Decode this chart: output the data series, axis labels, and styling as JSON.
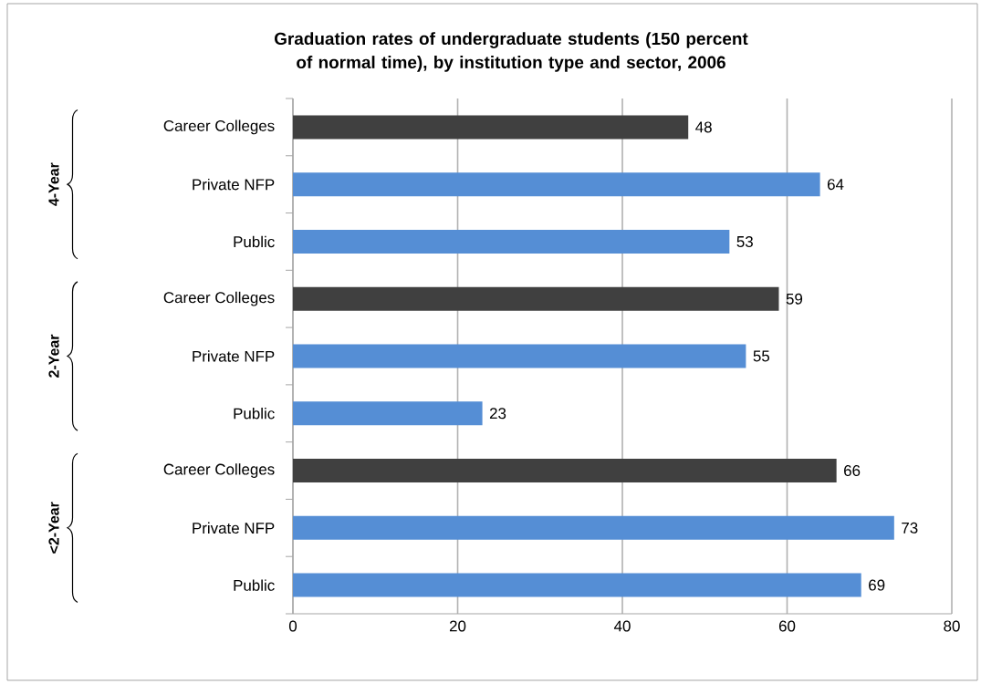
{
  "chart_data": {
    "type": "bar",
    "orientation": "horizontal",
    "title": "Graduation rates of undergraduate students (150 percent of normal time), by institution type and sector, 2006",
    "categories": [
      "Career Colleges",
      "Private NFP",
      "Public",
      "Career Colleges",
      "Private NFP",
      "Public",
      "Career Colleges",
      "Private NFP",
      "Public"
    ],
    "values": [
      48,
      64,
      53,
      59,
      55,
      23,
      66,
      73,
      69
    ],
    "colors": [
      "#404040",
      "#558ed5",
      "#558ed5",
      "#404040",
      "#558ed5",
      "#558ed5",
      "#404040",
      "#558ed5",
      "#558ed5"
    ],
    "xlim": [
      0,
      80
    ],
    "xticks": [
      0,
      20,
      40,
      60,
      80
    ],
    "grid": "x",
    "data_labels": true,
    "annotations": [
      "4-Year",
      "2-Year",
      "<2-Year"
    ]
  }
}
